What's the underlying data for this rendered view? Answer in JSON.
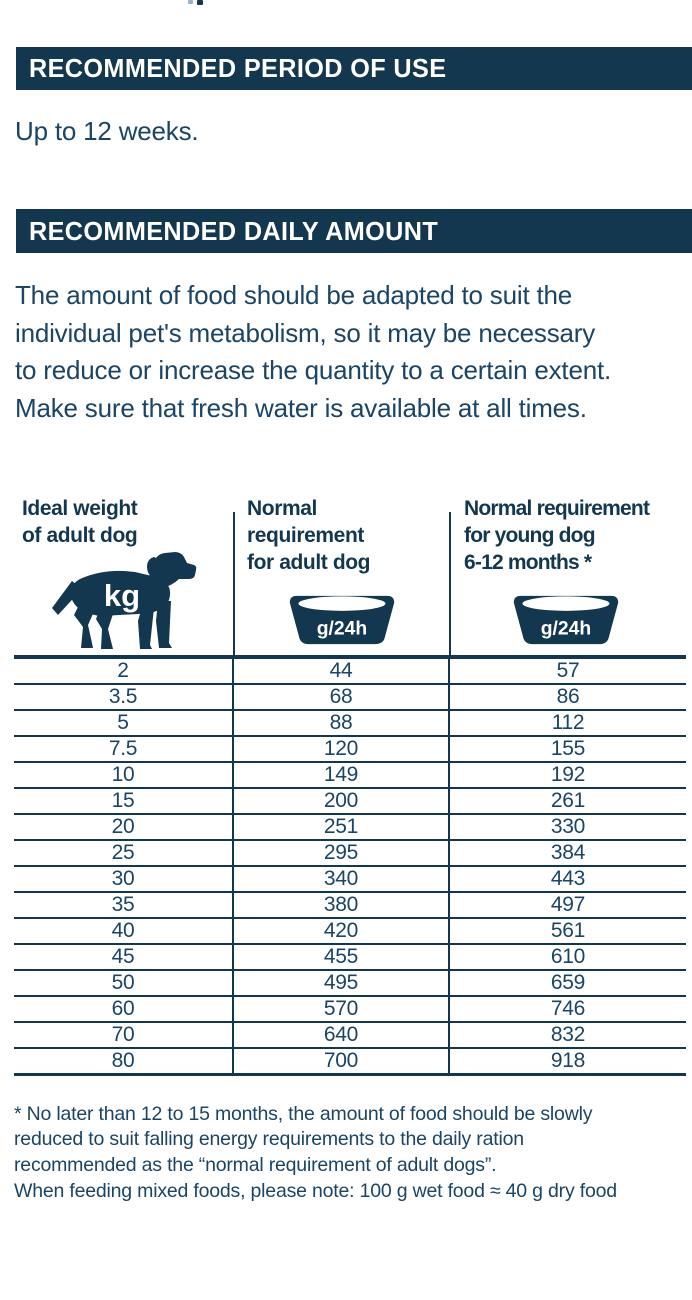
{
  "page": {
    "background": "#ffffff",
    "accent_color": "#143750",
    "text_color": "#1b4465"
  },
  "sections": {
    "period_of_use": {
      "title": "RECOMMENDED PERIOD OF USE",
      "body": "Up to 12 weeks."
    },
    "daily_amount": {
      "title": "RECOMMENDED DAILY AMOUNT",
      "body": "The amount of food should be adapted to suit the\nindividual pet's metabolism, so it may be necessary\nto reduce or increase the quantity to a certain extent.\nMake sure that fresh water is available at all times."
    }
  },
  "feeding_table": {
    "columns": [
      {
        "label": "Ideal weight\nof adult dog",
        "icon": "dog-silhouette-icon",
        "unit": "kg"
      },
      {
        "label": "Normal\nrequirement\nfor adult dog",
        "icon": "food-bowl-icon",
        "unit": "g/24h"
      },
      {
        "label": "Normal requirement\nfor young dog\n6-12 months *",
        "icon": "food-bowl-icon",
        "unit": "g/24h"
      }
    ],
    "rows": [
      [
        "2",
        "44",
        "57"
      ],
      [
        "3.5",
        "68",
        "86"
      ],
      [
        "5",
        "88",
        "112"
      ],
      [
        "7.5",
        "120",
        "155"
      ],
      [
        "10",
        "149",
        "192"
      ],
      [
        "15",
        "200",
        "261"
      ],
      [
        "20",
        "251",
        "330"
      ],
      [
        "25",
        "295",
        "384"
      ],
      [
        "30",
        "340",
        "443"
      ],
      [
        "35",
        "380",
        "497"
      ],
      [
        "40",
        "420",
        "561"
      ],
      [
        "45",
        "455",
        "610"
      ],
      [
        "50",
        "495",
        "659"
      ],
      [
        "60",
        "570",
        "746"
      ],
      [
        "70",
        "640",
        "832"
      ],
      [
        "80",
        "700",
        "918"
      ]
    ]
  },
  "footnotes": {
    "asterisk_note": "* No later than 12 to 15 months, the amount of food should be slowly\nreduced to suit falling energy requirements to the daily ration\nrecommended as the “normal requirement of adult dogs”.",
    "mixed_feeding_note": "When feeding mixed foods, please note: 100 g wet food ≈ 40 g dry food"
  }
}
